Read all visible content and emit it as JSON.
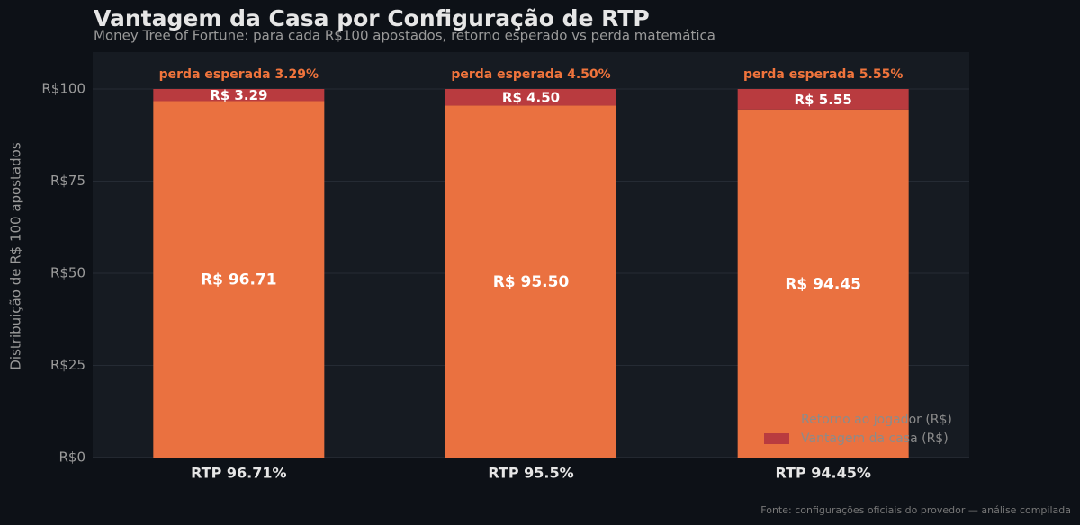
{
  "chart_data": {
    "type": "stacked_bar",
    "title": "Vantagem da Casa por Configuração de RTP",
    "subtitle": "Money Tree of Fortune: para cada R$100 apostados, retorno esperado vs perda matemática",
    "ylabel": "Distribuição de R$ 100 apostados",
    "source": "Fonte: configurações oficiais do provedor — análise compilada",
    "categories": [
      "RTP 96.71%",
      "RTP 95.5%",
      "RTP 94.45%"
    ],
    "series": [
      {
        "name": "Retorno ao jogador (R$)",
        "color": "#ea7140",
        "values": [
          96.71,
          95.5,
          94.45
        ],
        "value_labels": [
          "R$ 96.71",
          "R$ 95.50",
          "R$ 94.45"
        ]
      },
      {
        "name": "Vantagem da casa (R$)",
        "color": "#b93b3f",
        "values": [
          3.29,
          4.5,
          5.55
        ],
        "value_labels": [
          "R$ 3.29",
          "R$ 4.50",
          "R$ 5.55"
        ]
      }
    ],
    "annotations": [
      "perda esperada 3.29%",
      "perda esperada 4.50%",
      "perda esperada 5.55%"
    ],
    "ylim": [
      0,
      110
    ],
    "yticks": [
      {
        "value": 0,
        "label": "R$0"
      },
      {
        "value": 25,
        "label": "R$25"
      },
      {
        "value": 50,
        "label": "R$50"
      },
      {
        "value": 75,
        "label": "R$75"
      },
      {
        "value": 100,
        "label": "R$100"
      }
    ],
    "grid": true,
    "legend": "lower right"
  }
}
